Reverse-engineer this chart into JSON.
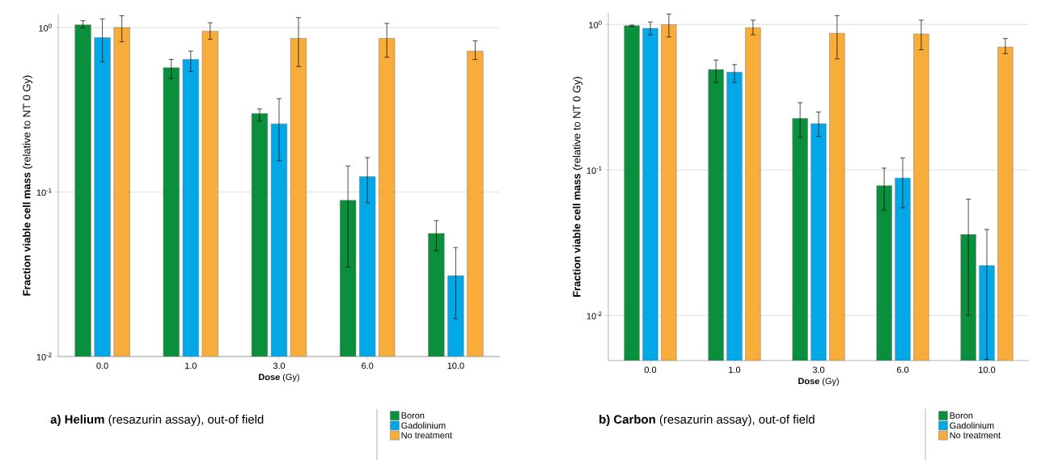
{
  "chart_data": [
    {
      "type": "bar",
      "title": "**a) Helium** (resazurin assay), out-of field",
      "xlabel": "**Dose** (Gy)",
      "ylabel": "**Fraction viable cell mass** (relative to NT 0 Gy)",
      "categories": [
        "0.0",
        "1.0",
        "3.0",
        "6.0",
        "10.0"
      ],
      "series": [
        {
          "name": "Boron",
          "color": "#0a8f3c",
          "values": [
            1.04,
            0.57,
            0.3,
            0.089,
            0.056
          ],
          "errors": [
            [
              1.0,
              1.1
            ],
            [
              0.49,
              0.64
            ],
            [
              0.27,
              0.32
            ],
            [
              0.035,
              0.144
            ],
            [
              0.044,
              0.067
            ]
          ]
        },
        {
          "name": "Gadolinium",
          "color": "#00a8e8",
          "values": [
            0.87,
            0.64,
            0.26,
            0.124,
            0.031
          ],
          "errors": [
            [
              0.62,
              1.13
            ],
            [
              0.54,
              0.72
            ],
            [
              0.155,
              0.37
            ],
            [
              0.086,
              0.162
            ],
            [
              0.017,
              0.046
            ]
          ]
        },
        {
          "name": "No treatment",
          "color": "#f8ad3a",
          "values": [
            1.0,
            0.95,
            0.86,
            0.86,
            0.72
          ],
          "errors": [
            [
              0.82,
              1.18
            ],
            [
              0.85,
              1.07
            ],
            [
              0.58,
              1.15
            ],
            [
              0.66,
              1.06
            ],
            [
              0.64,
              0.83
            ]
          ]
        }
      ],
      "log": "y",
      "ylim": [
        0.01,
        1.2
      ],
      "yticks": [
        {
          "value": 0.01,
          "label": "10$^{-2}$"
        },
        {
          "value": 0.1,
          "label": "10$^{-1}$"
        },
        {
          "value": 1,
          "label": "10$^{0}$"
        }
      ],
      "grid": "y",
      "legend": "bottom right"
    },
    {
      "type": "bar",
      "title": "**b) Carbon** (resazurin assay), out-of field",
      "xlabel": "**Dose** (Gy)",
      "ylabel": "**Fraction viable cell mass** (relative to NT 0 Gy)",
      "categories": [
        "0.0",
        "1.0",
        "3.0",
        "6.0",
        "10.0"
      ],
      "series": [
        {
          "name": "Boron",
          "color": "#0a8f3c",
          "values": [
            0.98,
            0.49,
            0.226,
            0.078,
            0.036
          ],
          "errors": [
            [
              0.97,
              0.99
            ],
            [
              0.4,
              0.57
            ],
            [
              0.167,
              0.29
            ],
            [
              0.053,
              0.103
            ],
            [
              0.01,
              0.063
            ]
          ]
        },
        {
          "name": "Gadolinium",
          "color": "#00a8e8",
          "values": [
            0.94,
            0.47,
            0.208,
            0.088,
            0.022
          ],
          "errors": [
            [
              0.85,
              1.04
            ],
            [
              0.4,
              0.53
            ],
            [
              0.17,
              0.25
            ],
            [
              0.055,
              0.121
            ],
            [
              0.005,
              0.039
            ]
          ]
        },
        {
          "name": "No treatment",
          "color": "#f8ad3a",
          "values": [
            1.0,
            0.95,
            0.87,
            0.86,
            0.7
          ],
          "errors": [
            [
              0.82,
              1.18
            ],
            [
              0.85,
              1.07
            ],
            [
              0.58,
              1.15
            ],
            [
              0.67,
              1.07
            ],
            [
              0.63,
              0.8
            ]
          ]
        }
      ],
      "log": "y",
      "ylim": [
        0.0049,
        1.2
      ],
      "yticks": [
        {
          "value": 0.01,
          "label": "10$^{-2}$"
        },
        {
          "value": 0.1,
          "label": "10$^{-1}$"
        },
        {
          "value": 1,
          "label": "10$^{0}$"
        }
      ],
      "grid": "y",
      "legend": "bottom right"
    }
  ]
}
